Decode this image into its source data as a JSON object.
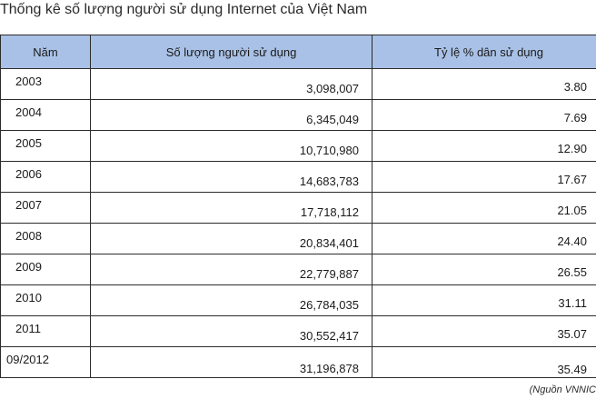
{
  "title": "Thống kê số lượng người sử dụng Internet của Việt Nam",
  "headers": {
    "year": "Năm",
    "users": "Số lượng người sử dụng",
    "percent": "Tỷ lệ % dân sử dụng"
  },
  "rows": [
    {
      "year": "2003",
      "users": "3,098,007",
      "percent": "3.80"
    },
    {
      "year": "2004",
      "users": "6,345,049",
      "percent": "7.69"
    },
    {
      "year": "2005",
      "users": "10,710,980",
      "percent": "12.90"
    },
    {
      "year": "2006",
      "users": "14,683,783",
      "percent": "17.67"
    },
    {
      "year": "2007",
      "users": "17,718,112",
      "percent": "21.05"
    },
    {
      "year": "2008",
      "users": "20,834,401",
      "percent": "24.40"
    },
    {
      "year": "2009",
      "users": "22,779,887",
      "percent": "26.55"
    },
    {
      "year": "2010",
      "users": "26,784,035",
      "percent": "31.11"
    },
    {
      "year": "2011",
      "users": "30,552,417",
      "percent": "35.07"
    },
    {
      "year": "09/2012",
      "users": "31,196,878",
      "percent": "35.49"
    }
  ],
  "source": "(Nguồn VNNIC",
  "colors": {
    "header_bg": "#a9c1e6",
    "border": "#2b2b2b"
  }
}
